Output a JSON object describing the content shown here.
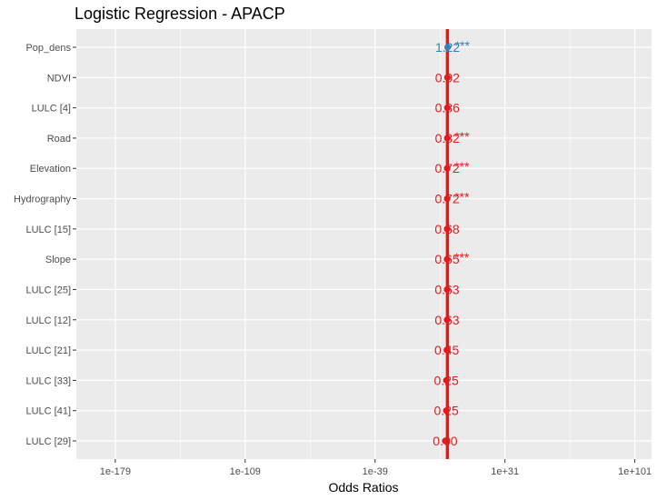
{
  "chart_data": {
    "type": "scatter",
    "title": "Logistic Regression - APACP",
    "xlabel": "Odds Ratios",
    "ylabel": "",
    "x_scale": "log10",
    "xlim_log10": [
      -200,
      110
    ],
    "x_ticks": [
      {
        "label": "1e-179",
        "log10": -179
      },
      {
        "label": "1e-109",
        "log10": -109
      },
      {
        "label": "1e-39",
        "log10": -39
      },
      {
        "label": "1e+31",
        "log10": 31
      },
      {
        "label": "1e+101",
        "log10": 101
      }
    ],
    "reference_line": {
      "value": 1,
      "color": "#e31a1c"
    },
    "grid": true,
    "legend": "none",
    "series": [
      {
        "term": "Pop_dens",
        "estimate": 1.22,
        "label": "1.22",
        "stars": "***",
        "color": "#377eb8"
      },
      {
        "term": "NDVI",
        "estimate": 0.92,
        "label": "0.92",
        "stars": "",
        "color": "#e31a1c"
      },
      {
        "term": "LULC [4]",
        "estimate": 0.86,
        "label": "0.86",
        "stars": "",
        "color": "#e31a1c"
      },
      {
        "term": "Road",
        "estimate": 0.82,
        "label": "0.82",
        "stars": "***",
        "color": "#e31a1c"
      },
      {
        "term": "Elevation",
        "estimate": 0.72,
        "label": "0.72",
        "stars": "***",
        "color": "#e31a1c"
      },
      {
        "term": "Hydrography",
        "estimate": 0.72,
        "label": "0.72",
        "stars": "***",
        "color": "#e31a1c"
      },
      {
        "term": "LULC [15]",
        "estimate": 0.68,
        "label": "0.68",
        "stars": "",
        "color": "#e31a1c"
      },
      {
        "term": "Slope",
        "estimate": 0.65,
        "label": "0.65",
        "stars": "***",
        "color": "#e31a1c"
      },
      {
        "term": "LULC [25]",
        "estimate": 0.63,
        "label": "0.63",
        "stars": "",
        "color": "#e31a1c"
      },
      {
        "term": "LULC [12]",
        "estimate": 0.63,
        "label": "0.63",
        "stars": "",
        "color": "#e31a1c"
      },
      {
        "term": "LULC [21]",
        "estimate": 0.45,
        "label": "0.45",
        "stars": "",
        "color": "#e31a1c"
      },
      {
        "term": "LULC [33]",
        "estimate": 0.25,
        "label": "0.25",
        "stars": "",
        "color": "#e31a1c"
      },
      {
        "term": "LULC [41]",
        "estimate": 0.25,
        "label": "0.25",
        "stars": "",
        "color": "#e31a1c"
      },
      {
        "term": "LULC [29]",
        "estimate": 0.0,
        "label": "0.00",
        "stars": "",
        "color": "#e31a1c"
      }
    ]
  },
  "colors": {
    "panel_bg": "#ebebeb",
    "grid": "#ffffff",
    "positive": "#377eb8",
    "negative": "#e31a1c"
  }
}
